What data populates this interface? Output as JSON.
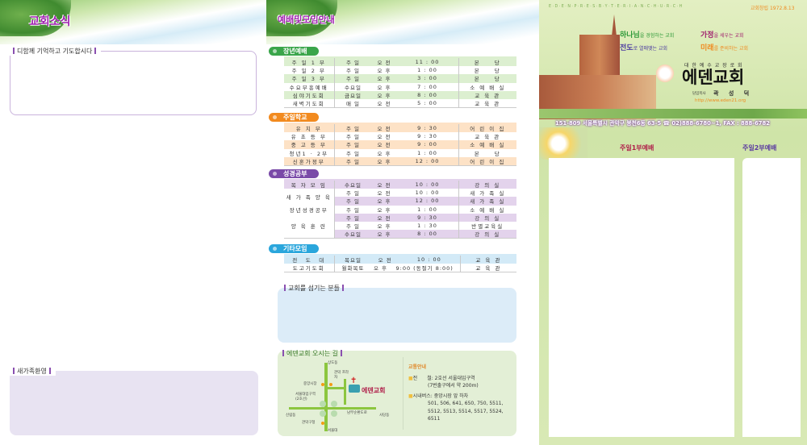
{
  "left": {
    "title": "교회소식",
    "prayer_label": "디함께 기억하고 기도합시다",
    "newcomer_label": "새가족환영"
  },
  "middle": {
    "title": "예배및모임안내",
    "sections": [
      {
        "name": "장년예배",
        "color": "#3aa54a",
        "row": "#dcefd0",
        "rows": [
          [
            "주 일 1 부",
            "주 일",
            "오 전",
            "11 : 00",
            "본　　당"
          ],
          [
            "주 일 2 부",
            "주 일",
            "오 후",
            "1 : 00",
            "본　　당"
          ],
          [
            "주 일 3 부",
            "주 일",
            "오 후",
            "3 : 00",
            "본　　당"
          ],
          [
            "수요부흥예배",
            "수요일",
            "오 후",
            "7 : 00",
            "소 예 배 실"
          ],
          [
            "심야기도회",
            "금요일",
            "오 후",
            "8 : 00",
            "교 육 관"
          ],
          [
            "새벽기도회",
            "매 일",
            "오 전",
            "5 : 00",
            "교 육 관"
          ]
        ]
      },
      {
        "name": "주일학교",
        "color": "#f28a1e",
        "row": "#fde2c6",
        "rows": [
          [
            "유 치 부",
            "주 일",
            "오 전",
            "9 : 30",
            "어 린 이 집"
          ],
          [
            "유 초 등 부",
            "주 일",
            "오 전",
            "9 : 30",
            "교 육 관"
          ],
          [
            "중 고 등 부",
            "주 일",
            "오 전",
            "9 : 00",
            "소 예 배 실"
          ],
          [
            "청년1 · 2부",
            "주 일",
            "오 후",
            "1 : 00",
            "본　　당"
          ],
          [
            "신혼가정부",
            "주 일",
            "오 후",
            "12 : 00",
            "어 린 이 집"
          ]
        ]
      },
      {
        "name": "성경공부",
        "color": "#7a4aa8",
        "row": "#e3d3ec",
        "rows": [
          [
            "목 자 모 임",
            "수요일",
            "오 전",
            "10 : 00",
            "강 의 실"
          ],
          [
            "새 가 족 양 육",
            "주 일",
            "오 전",
            "10 : 00",
            "새 가 족 실"
          ],
          [
            "",
            "주 일",
            "오 후",
            "12 : 00",
            "새 가 족 실"
          ],
          [
            "장년성경공부",
            "주 일",
            "오 후",
            "1 : 00",
            "소 예 배 실"
          ],
          [
            "양 육 훈 련",
            "주 일",
            "오 전",
            "9 : 30",
            "강 의 실"
          ],
          [
            "",
            "주 일",
            "오 후",
            "1 : 30",
            "반별교육실"
          ],
          [
            "",
            "수요일",
            "오 후",
            "8 : 00",
            "강 의 실"
          ]
        ]
      },
      {
        "name": "기타모임",
        "color": "#2aa6dc",
        "row": "#d3eaf7",
        "rows": [
          [
            "전　도　대",
            "목요일",
            "오 전",
            "10 : 00",
            "교 육 관"
          ],
          [
            "도고기도회",
            "월화목토",
            "오 후",
            "9:00 (동절기 8:00)",
            "교 육 관"
          ]
        ]
      }
    ],
    "servants_label": "교회를 섬기는 분들",
    "directions": {
      "label": "에덴교회 오시는 길",
      "church": "에덴교회",
      "map_labels": [
        "상도동",
        "관악 프라자",
        "중앙시장",
        "서울대입구역 (2호선)",
        "신림동",
        "남부순환도로",
        "사당동",
        "관악구청",
        "서울대"
      ],
      "transit_title": "교통안내",
      "subway_label": "전　　철:",
      "subway": "2호선 서울대입구역",
      "subway_note": "(7번출구에서 약 200m)",
      "bus_label": "시내버스:",
      "bus": "중앙시장 앞 하차",
      "bus_numbers": "501, 506, 641, 650, 750, 5511, 5512, 5513, 5514, 5517, 5524, 6511"
    }
  },
  "cover": {
    "english": "E·D·E·N·P·R·E·S·B·Y·T·E·R·I·A·N·C·H·U·R·C·H",
    "founded": "교회창립 1972.8.13",
    "slogans": [
      {
        "big": "하나님",
        "rest": "을 경험하는 교회",
        "color": "#2f9a3a"
      },
      {
        "big": "가정",
        "rest": "을 세우는 교회",
        "color": "#a0206e"
      },
      {
        "big": "전도",
        "rest": "로 열매맺는 교회",
        "color": "#4a3aa0"
      },
      {
        "big": "미래",
        "rest": "를 준비하는 교회",
        "color": "#f08a1e"
      }
    ],
    "denomination": "대 한 예 수 교 장 로 회",
    "church_name": "에덴교회",
    "pastor_title": "담임목사",
    "pastor": "곽 성 덕",
    "url": "http://www.eden21.org",
    "address": "151-809 서울특별시 관악구 봉천6동 63-5 ☎ 02)888-6780~1, FAX : 888-6782",
    "service1": "주일1부예배",
    "service2": "주일2부예배"
  }
}
